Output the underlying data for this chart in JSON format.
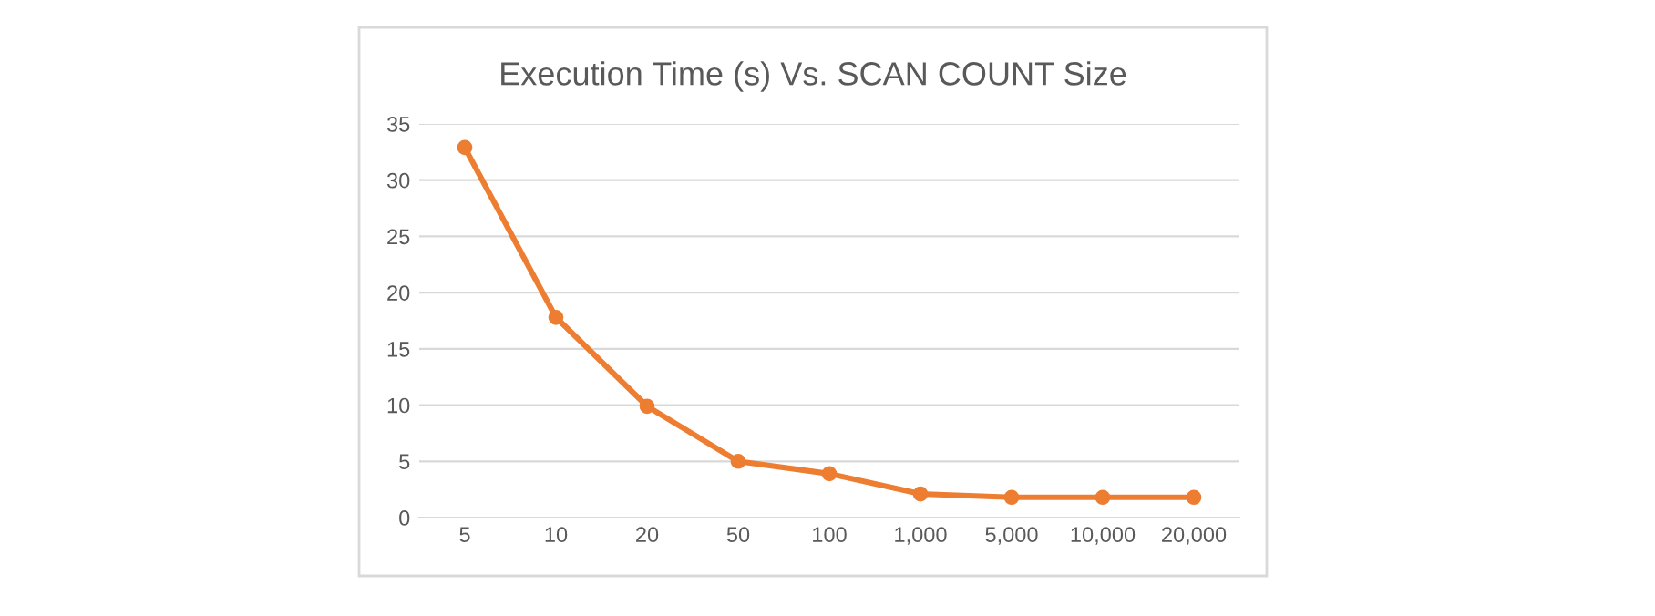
{
  "chart_data": {
    "type": "line",
    "title": "Execution Time (s) Vs. SCAN COUNT Size",
    "categories": [
      "5",
      "10",
      "20",
      "50",
      "100",
      "1,000",
      "5,000",
      "10,000",
      "20,000"
    ],
    "series": [
      {
        "color": "#ed7d31",
        "values": [
          32.9,
          17.8,
          9.9,
          5.0,
          3.9,
          2.1,
          1.8,
          1.8,
          1.8
        ]
      }
    ],
    "ylim": [
      0,
      35
    ],
    "yticks": [
      0,
      5,
      10,
      15,
      20,
      25,
      30,
      35
    ],
    "grid": "y",
    "marker": "circle",
    "line_style": "solid"
  }
}
